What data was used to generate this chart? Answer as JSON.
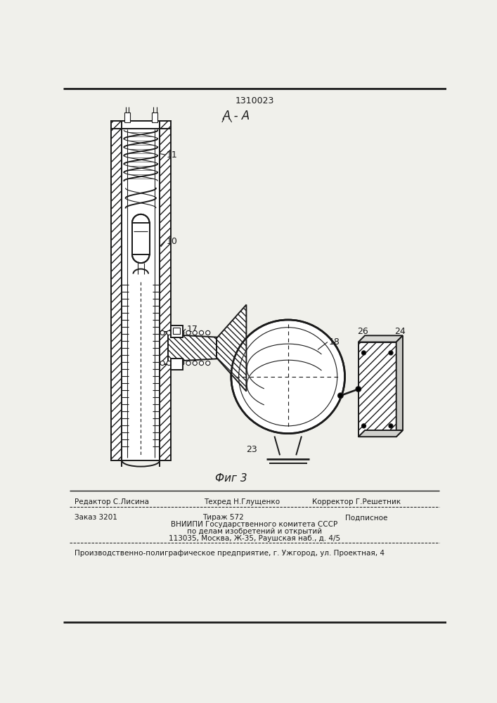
{
  "patent_number": "1310023",
  "section_label": "А - А",
  "fig_label": "Фиг 3",
  "label_11": "11",
  "label_10": "10",
  "label_17": "17",
  "label_18": "18",
  "label_23": "23",
  "label_24": "24",
  "label_26": "26",
  "editor_line1": "Редактор С.Лисина",
  "editor_line2": "Техред Н.Глущенко",
  "editor_line3": "Корректор Г.Решетник",
  "order_text": "Заказ 3201",
  "tirage_text": "Тираж 572",
  "podpisnoe_text": "Подписное",
  "vnipi_text": "ВНИИПИ Государственного комитета СССР",
  "po_delam_text": "по делам изобретений и открытий",
  "address_text": "113035, Москва, Ж-35, Раушская наб., д. 4/5",
  "factory_text": "Производственно-полиграфическое предприятие, г. Ужгород, ул. Проектная, 4",
  "bg_color": "#f0f0eb",
  "lc": "#1a1a1a"
}
